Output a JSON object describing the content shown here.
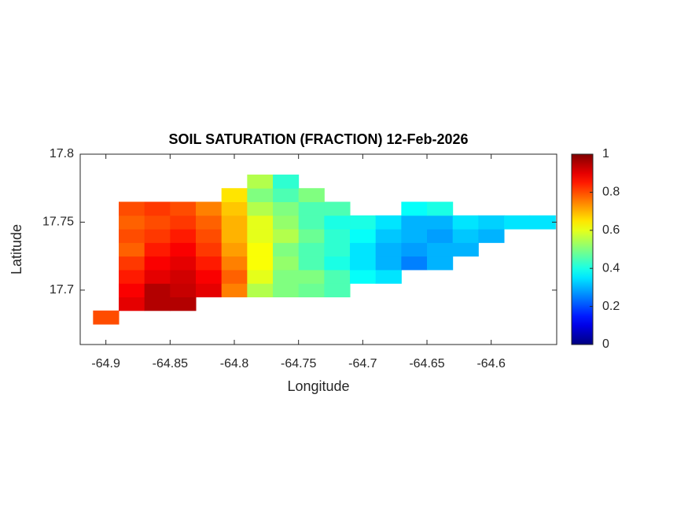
{
  "chart_data": {
    "type": "heatmap",
    "title": "SOIL SATURATION (FRACTION) 12-Feb-2026",
    "x_label": "Longitude",
    "y_label": "Latitude",
    "x": [
      -64.9,
      -64.88,
      -64.86,
      -64.84,
      -64.82,
      -64.8,
      -64.78,
      -64.76,
      -64.74,
      -64.72,
      -64.7,
      -64.68,
      -64.66,
      -64.64,
      -64.62,
      -64.6,
      -64.58,
      -64.56
    ],
    "y": [
      17.68,
      17.69,
      17.7,
      17.71,
      17.72,
      17.73,
      17.74,
      17.75,
      17.76,
      17.77,
      17.78
    ],
    "z": [
      [
        0.8,
        null,
        null,
        null,
        null,
        null,
        null,
        null,
        null,
        null,
        null,
        null,
        null,
        null,
        null,
        null,
        null,
        null
      ],
      [
        null,
        0.9,
        0.95,
        0.95,
        null,
        null,
        null,
        null,
        null,
        null,
        null,
        null,
        null,
        null,
        null,
        null,
        null,
        null
      ],
      [
        null,
        0.88,
        0.95,
        0.93,
        0.9,
        0.75,
        0.55,
        0.5,
        0.48,
        0.45,
        null,
        null,
        null,
        null,
        null,
        null,
        null,
        null
      ],
      [
        null,
        0.85,
        0.9,
        0.92,
        0.88,
        0.78,
        0.6,
        0.5,
        0.5,
        0.45,
        0.38,
        0.35,
        null,
        null,
        null,
        null,
        null,
        null
      ],
      [
        null,
        0.82,
        0.88,
        0.9,
        0.85,
        0.75,
        0.62,
        0.52,
        0.45,
        0.4,
        0.35,
        0.3,
        0.25,
        0.3,
        null,
        null,
        null,
        null
      ],
      [
        null,
        0.78,
        0.85,
        0.88,
        0.82,
        0.72,
        0.62,
        0.5,
        0.45,
        0.42,
        0.35,
        0.3,
        0.28,
        0.3,
        0.3,
        null,
        null,
        null
      ],
      [
        null,
        0.8,
        0.82,
        0.85,
        0.8,
        0.7,
        0.6,
        0.55,
        0.48,
        0.42,
        0.38,
        0.32,
        0.3,
        0.28,
        0.32,
        0.3,
        null,
        null
      ],
      [
        null,
        0.78,
        0.8,
        0.82,
        0.78,
        0.7,
        0.6,
        0.52,
        0.45,
        0.4,
        0.4,
        0.35,
        0.3,
        0.3,
        0.35,
        0.33,
        0.35,
        0.35
      ],
      [
        null,
        0.8,
        0.82,
        0.8,
        0.75,
        0.68,
        0.55,
        0.5,
        0.45,
        0.45,
        null,
        null,
        0.38,
        0.4,
        null,
        null,
        null,
        null
      ],
      [
        null,
        null,
        null,
        null,
        null,
        0.65,
        0.5,
        0.45,
        0.5,
        null,
        null,
        null,
        null,
        null,
        null,
        null,
        null,
        null
      ],
      [
        null,
        null,
        null,
        null,
        null,
        null,
        0.55,
        0.42,
        null,
        null,
        null,
        null,
        null,
        null,
        null,
        null,
        null,
        null
      ]
    ],
    "colormap": "jet",
    "xlim": [
      -64.92,
      -64.549
    ],
    "ylim": [
      17.66,
      17.8
    ],
    "xticks": [
      -64.9,
      -64.85,
      -64.8,
      -64.75,
      -64.7,
      -64.65,
      -64.6
    ],
    "yticks": [
      17.7,
      17.75,
      17.8
    ],
    "clim": [
      0,
      1
    ],
    "cticks": [
      0,
      0.2,
      0.4,
      0.6,
      0.8,
      1
    ],
    "grid": false
  }
}
